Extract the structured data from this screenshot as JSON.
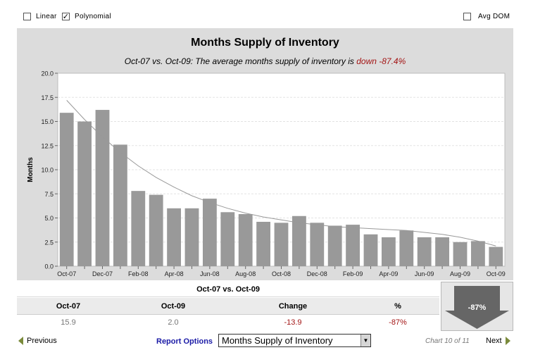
{
  "options": {
    "linear": {
      "label": "Linear",
      "checked": false
    },
    "polynomial": {
      "label": "Polynomial",
      "checked": true
    },
    "avg_dom": {
      "label": "Avg DOM",
      "checked": false
    }
  },
  "chart_data": {
    "type": "bar",
    "title": "Months Supply of Inventory",
    "subtitle_prefix": "Oct-07 vs. Oct-09: The average months supply of inventory is ",
    "subtitle_change": "down -87.4%",
    "ylabel": "Months",
    "xlabel": "",
    "ylim": [
      0,
      20
    ],
    "yticks": [
      "0.0",
      "2.5",
      "5.0",
      "7.5",
      "10.0",
      "12.5",
      "15.0",
      "17.5",
      "20.0"
    ],
    "categories": [
      "Oct-07",
      "Nov-07",
      "Dec-07",
      "Jan-08",
      "Feb-08",
      "Mar-08",
      "Apr-08",
      "May-08",
      "Jun-08",
      "Jul-08",
      "Aug-08",
      "Sep-08",
      "Oct-08",
      "Nov-08",
      "Dec-08",
      "Jan-09",
      "Feb-09",
      "Mar-09",
      "Apr-09",
      "May-09",
      "Jun-09",
      "Jul-09",
      "Aug-09",
      "Sep-09",
      "Oct-09"
    ],
    "xtick_labels": [
      "Oct-07",
      "",
      "Dec-07",
      "",
      "Feb-08",
      "",
      "Apr-08",
      "",
      "Jun-08",
      "",
      "Aug-08",
      "",
      "Oct-08",
      "",
      "Dec-08",
      "",
      "Feb-09",
      "",
      "Apr-09",
      "",
      "Jun-09",
      "",
      "Aug-09",
      "",
      "Oct-09"
    ],
    "values": [
      15.9,
      15.0,
      16.2,
      12.6,
      7.8,
      7.4,
      6.0,
      6.0,
      7.0,
      5.6,
      5.4,
      4.6,
      4.5,
      5.2,
      4.5,
      4.2,
      4.3,
      3.3,
      3.0,
      3.7,
      3.0,
      3.0,
      2.5,
      2.6,
      2.0
    ],
    "trend": [
      17.2,
      15.2,
      13.4,
      11.8,
      10.4,
      9.2,
      8.2,
      7.3,
      6.6,
      6.0,
      5.5,
      5.1,
      4.8,
      4.5,
      4.3,
      4.1,
      4.0,
      3.9,
      3.8,
      3.7,
      3.5,
      3.3,
      3.0,
      2.6,
      2.1
    ],
    "bar_color": "#999999",
    "trend_color": "#999999",
    "grid": true
  },
  "summary": {
    "heading": "Oct-07 vs. Oct-09",
    "columns": [
      "Oct-07",
      "Oct-09",
      "Change",
      "%"
    ],
    "values": [
      "15.9",
      "2.0",
      "-13.9",
      "-87%"
    ],
    "arrow_label": "-87%",
    "negative_color": "#a31515"
  },
  "nav": {
    "previous": "Previous",
    "next": "Next",
    "report_options": "Report Options",
    "report_selected": "Months Supply of Inventory",
    "chart_of": "Chart 10 of 11"
  }
}
